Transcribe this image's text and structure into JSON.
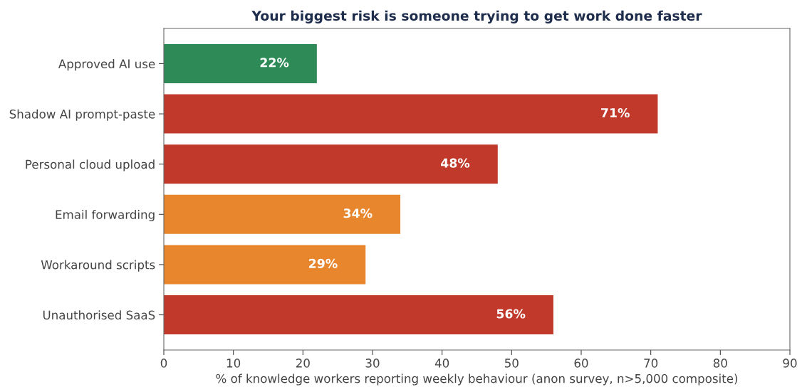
{
  "chart_data": {
    "type": "bar",
    "orientation": "horizontal",
    "title": "Your biggest risk is someone trying to get work done faster",
    "xlabel": "% of knowledge workers reporting weekly behaviour (anon survey, n>5,000 composite)",
    "categories": [
      "Approved AI use",
      "Shadow AI prompt-paste",
      "Personal cloud upload",
      "Email forwarding",
      "Workaround scripts",
      "Unauthorised SaaS"
    ],
    "values": [
      22,
      71,
      48,
      34,
      29,
      56
    ],
    "colors": [
      "#2e8b57",
      "#c0392b",
      "#c0392b",
      "#e8862e",
      "#e8862e",
      "#c0392b"
    ],
    "value_labels": [
      "22%",
      "71%",
      "48%",
      "34%",
      "29%",
      "56%"
    ],
    "xlim": [
      0,
      90
    ],
    "xticks": [
      0,
      10,
      20,
      30,
      40,
      50,
      60,
      70,
      80,
      90
    ],
    "grid": false,
    "legend": false
  }
}
